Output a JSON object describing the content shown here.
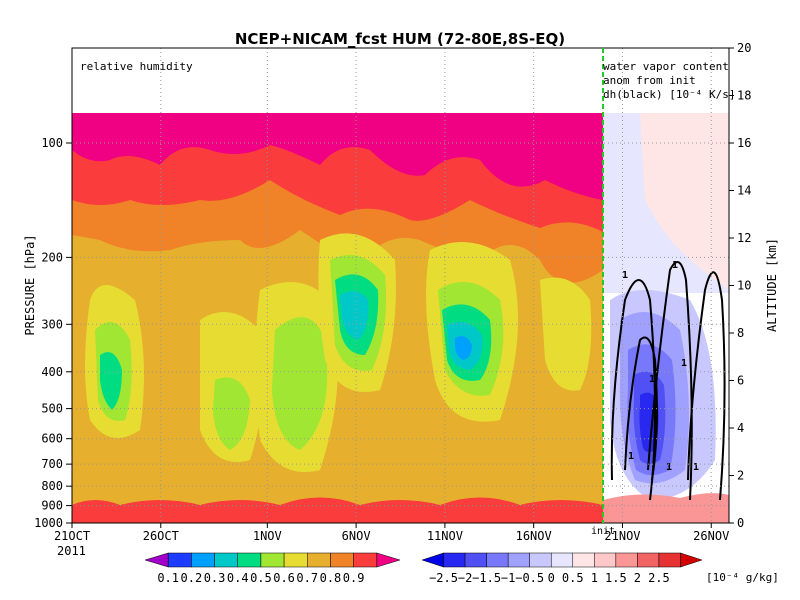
{
  "chart_data": {
    "type": "heatmap",
    "title": "NCEP+NICAM_fcst HUM (72-80E,8S-EQ)",
    "ylabel": "PRESSURE [hPa]",
    "ylabel_right": "ALTITUDE [km]",
    "panel_left_label": "relative humidity",
    "panel_right_label": [
      "water vapor content",
      "anom from init",
      "dh(black) [10⁻⁴ K/s]"
    ],
    "init_label": "init",
    "x_ticks": [
      "21OCT",
      "26OCT",
      "1NOV",
      "6NOV",
      "11NOV",
      "16NOV",
      "21NOV",
      "26NOV"
    ],
    "year_label": "2011",
    "y_ticks_pressure": [
      "100",
      "200",
      "300",
      "400",
      "500",
      "600",
      "700",
      "800",
      "900",
      "1000"
    ],
    "y_ticks_altitude": [
      "0",
      "2",
      "4",
      "6",
      "8",
      "10",
      "12",
      "14",
      "16",
      "18",
      "20"
    ],
    "ylim_altitude_km": [
      0,
      20
    ],
    "ylim_pressure_hPa": [
      1000,
      100
    ],
    "xlim_days": [
      "21OCT",
      "27NOV"
    ],
    "init_date": "20NOV",
    "contour_label": "1",
    "colorbar_left": {
      "levels": [
        "0.1",
        "0.2",
        "0.3",
        "0.4",
        "0.5",
        "0.6",
        "0.7",
        "0.8",
        "0.9"
      ],
      "colors": [
        "#a000c8",
        "#1e3cff",
        "#00a0ff",
        "#00c8c8",
        "#00dc82",
        "#a0e632",
        "#e6dc32",
        "#e6af2d",
        "#f08228",
        "#fa3c3c",
        "#f00082"
      ]
    },
    "colorbar_right": {
      "levels": [
        "−2.5",
        "−2",
        "−1.5",
        "−1",
        "−0.5",
        "0",
        "0.5",
        "1",
        "1.5",
        "2",
        "2.5"
      ],
      "unit": "[10⁻⁴ g/kg]",
      "colors": [
        "#0000e6",
        "#2828f0",
        "#5050f5",
        "#7878fa",
        "#a0a0ff",
        "#c8c8ff",
        "#e6e6ff",
        "#ffe6e6",
        "#ffc8c8",
        "#fa9696",
        "#f06464",
        "#e63232",
        "#d20000"
      ]
    }
  }
}
